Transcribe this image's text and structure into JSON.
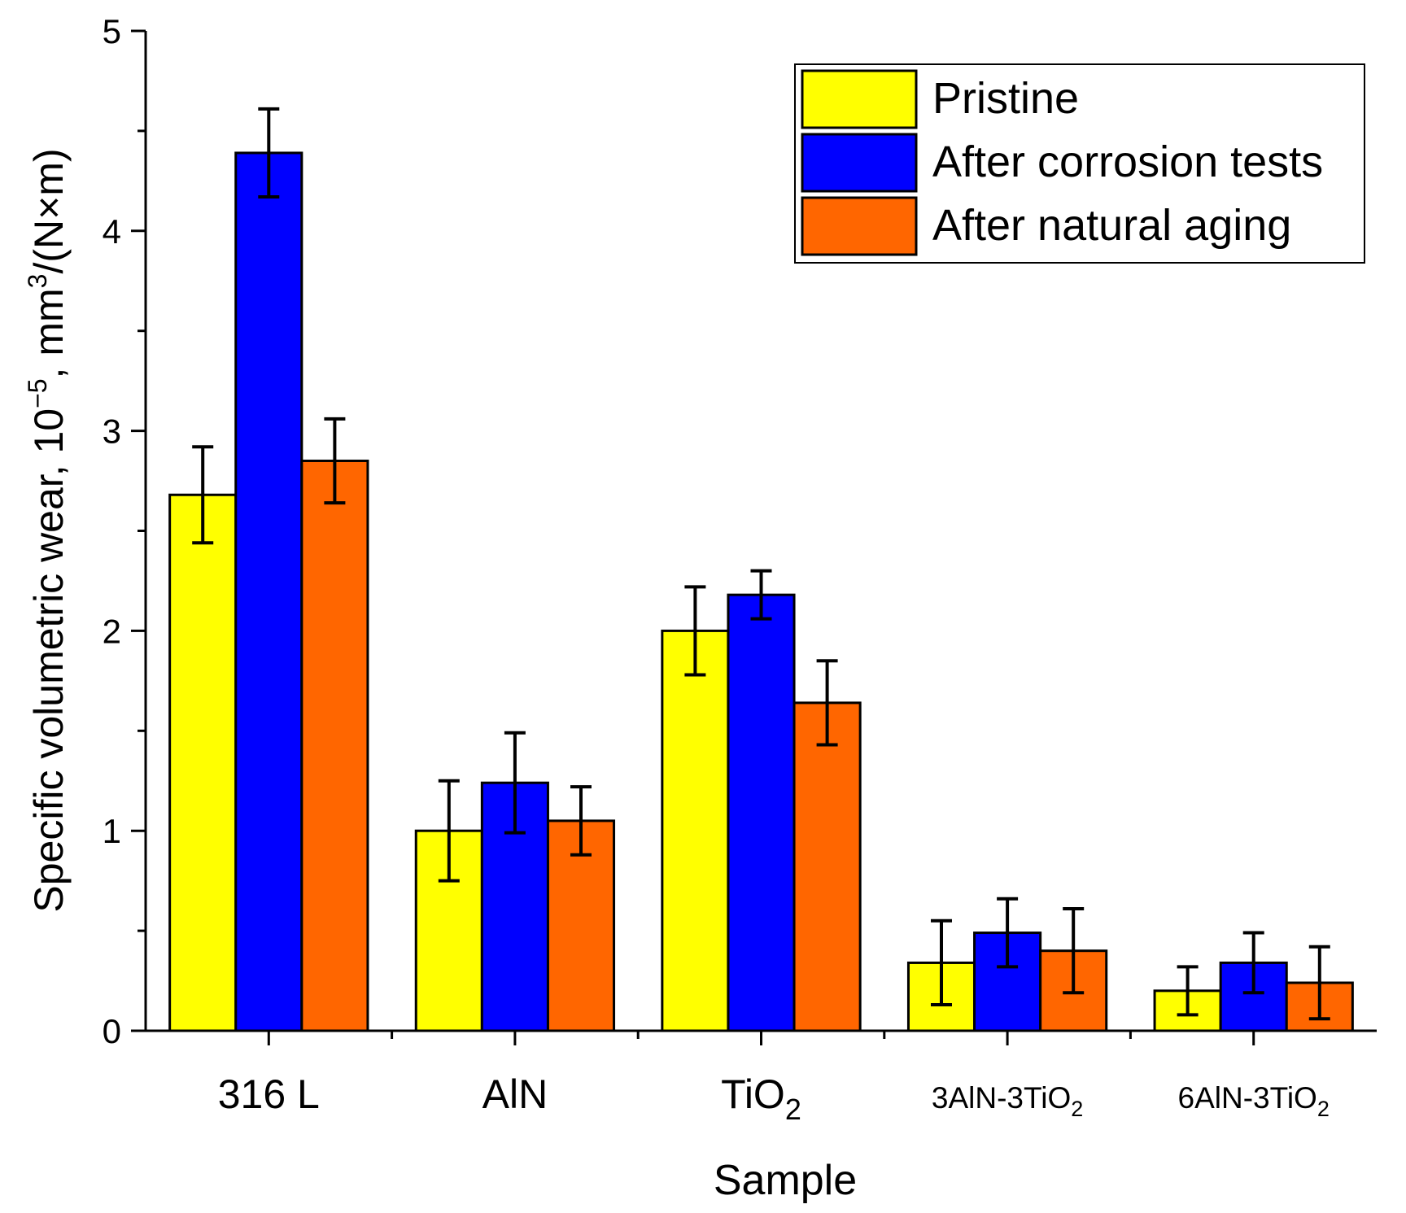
{
  "chart_data": {
    "type": "bar",
    "title": "",
    "xlabel": "Sample",
    "ylabel": "Specific volumetric wear, 10",
    "ylabel_exp1": "−5",
    "ylabel_mid": ", mm",
    "ylabel_exp2": "3",
    "ylabel_end": "/(N×m)",
    "ylim": [
      0,
      5
    ],
    "yticks": [
      "0",
      "1",
      "2",
      "3",
      "4",
      "5"
    ],
    "categories": [
      {
        "main": "316 L",
        "sub": "",
        "small": false
      },
      {
        "main": "AlN",
        "sub": "",
        "small": false
      },
      {
        "main": "TiO",
        "sub": "2",
        "small": false
      },
      {
        "main": "3AlN-3TiO",
        "sub": "2",
        "small": true
      },
      {
        "main": "6AlN-3TiO",
        "sub": "2",
        "small": true
      }
    ],
    "series": [
      {
        "name": "Pristine",
        "color": "#FFFF00",
        "values": [
          2.68,
          1.0,
          2.0,
          0.34,
          0.2
        ],
        "errors": [
          0.24,
          0.25,
          0.22,
          0.21,
          0.12
        ]
      },
      {
        "name": "After corrosion tests",
        "color": "#0000FF",
        "values": [
          4.39,
          1.24,
          2.18,
          0.49,
          0.34
        ],
        "errors": [
          0.22,
          0.25,
          0.12,
          0.17,
          0.15
        ]
      },
      {
        "name": "After natural aging",
        "color": "#FF6600",
        "values": [
          2.85,
          1.05,
          1.64,
          0.4,
          0.24
        ],
        "errors": [
          0.21,
          0.17,
          0.21,
          0.21,
          0.18
        ]
      }
    ],
    "legend_position": "top-right"
  }
}
